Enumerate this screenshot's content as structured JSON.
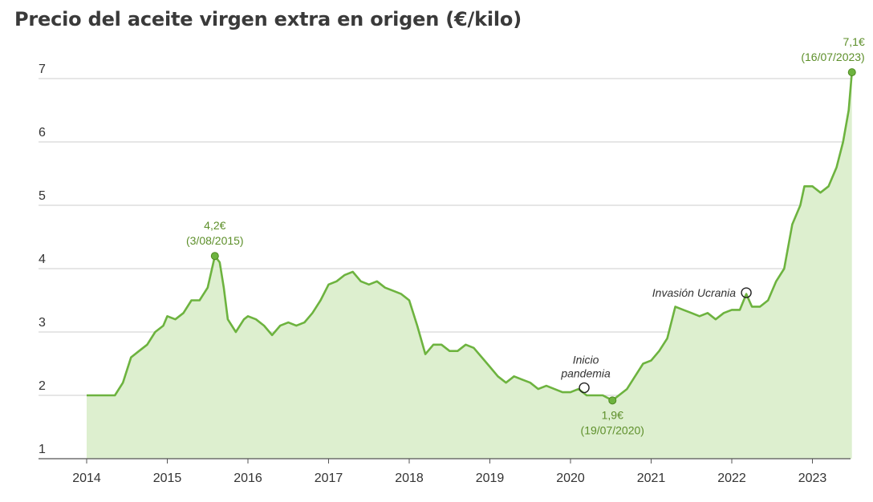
{
  "chart_data": {
    "type": "area",
    "title": "Precio del aceite virgen extra en origen (€/kilo)",
    "xlabel": "",
    "ylabel": "",
    "x_ticks": [
      "2014",
      "2015",
      "2016",
      "2017",
      "2018",
      "2019",
      "2020",
      "2021",
      "2022",
      "2023"
    ],
    "y_ticks": [
      "1",
      "2",
      "3",
      "4",
      "5",
      "6",
      "7"
    ],
    "ylim": [
      1,
      7.1
    ],
    "xlim": [
      2014.0,
      2023.6
    ],
    "grid": true,
    "colors": {
      "line": "#6db33f",
      "fill": "#ddefcf",
      "marker": "#6db33f",
      "grid": "#cccccc",
      "axis": "#555555"
    },
    "series": [
      {
        "x": [
          2014.0,
          2014.1,
          2014.2,
          2014.3,
          2014.35,
          2014.45,
          2014.55,
          2014.65,
          2014.75,
          2014.85,
          2014.95,
          2015.0,
          2015.1,
          2015.2,
          2015.3,
          2015.4,
          2015.5,
          2015.59,
          2015.65,
          2015.7,
          2015.75,
          2015.85,
          2015.95,
          2016.0,
          2016.1,
          2016.2,
          2016.3,
          2016.4,
          2016.5,
          2016.6,
          2016.7,
          2016.8,
          2016.9,
          2017.0,
          2017.1,
          2017.2,
          2017.3,
          2017.4,
          2017.5,
          2017.6,
          2017.7,
          2017.8,
          2017.9,
          2018.0,
          2018.1,
          2018.2,
          2018.3,
          2018.4,
          2018.5,
          2018.6,
          2018.7,
          2018.8,
          2018.9,
          2019.0,
          2019.1,
          2019.2,
          2019.3,
          2019.4,
          2019.5,
          2019.6,
          2019.7,
          2019.8,
          2019.9,
          2020.0,
          2020.1,
          2020.2,
          2020.3,
          2020.4,
          2020.52,
          2020.6,
          2020.7,
          2020.8,
          2020.9,
          2021.0,
          2021.1,
          2021.2,
          2021.3,
          2021.4,
          2021.5,
          2021.6,
          2021.7,
          2021.8,
          2021.9,
          2022.0,
          2022.1,
          2022.18,
          2022.25,
          2022.35,
          2022.45,
          2022.55,
          2022.65,
          2022.75,
          2022.85,
          2022.9,
          2023.0,
          2023.1,
          2023.2,
          2023.3,
          2023.38,
          2023.45,
          2023.49
        ],
        "y": [
          2.0,
          2.0,
          2.0,
          2.0,
          2.0,
          2.2,
          2.6,
          2.7,
          2.8,
          3.0,
          3.1,
          3.25,
          3.2,
          3.3,
          3.5,
          3.5,
          3.7,
          4.2,
          4.1,
          3.7,
          3.2,
          3.0,
          3.2,
          3.25,
          3.2,
          3.1,
          2.95,
          3.1,
          3.15,
          3.1,
          3.15,
          3.3,
          3.5,
          3.75,
          3.8,
          3.9,
          3.95,
          3.8,
          3.75,
          3.8,
          3.7,
          3.65,
          3.6,
          3.5,
          3.1,
          2.65,
          2.8,
          2.8,
          2.7,
          2.7,
          2.8,
          2.75,
          2.6,
          2.45,
          2.3,
          2.2,
          2.3,
          2.25,
          2.2,
          2.1,
          2.15,
          2.1,
          2.05,
          2.05,
          2.1,
          2.0,
          2.0,
          2.0,
          1.92,
          2.0,
          2.1,
          2.3,
          2.5,
          2.55,
          2.7,
          2.9,
          3.4,
          3.35,
          3.3,
          3.25,
          3.3,
          3.2,
          3.3,
          3.35,
          3.35,
          3.6,
          3.4,
          3.4,
          3.5,
          3.8,
          4.0,
          4.7,
          5.0,
          5.3,
          5.3,
          5.2,
          5.3,
          5.6,
          6.0,
          6.5,
          7.1
        ]
      }
    ],
    "annotations": [
      {
        "label": "4,2€",
        "sublabel": "(3/08/2015)",
        "x": 2015.59,
        "y": 4.2,
        "kind": "peak"
      },
      {
        "label": "1,9€",
        "sublabel": "(19/07/2020)",
        "x": 2020.52,
        "y": 1.92,
        "kind": "low"
      },
      {
        "label": "7,1€",
        "sublabel": "(16/07/2023)",
        "x": 2023.49,
        "y": 7.1,
        "kind": "peak"
      }
    ],
    "events": [
      {
        "line1": "Inicio",
        "line2": "pandemia",
        "x": 2020.17,
        "y": 2.12
      },
      {
        "line1": "Invasión Ucrania",
        "line2": "",
        "x": 2022.18,
        "y": 3.62
      }
    ]
  }
}
